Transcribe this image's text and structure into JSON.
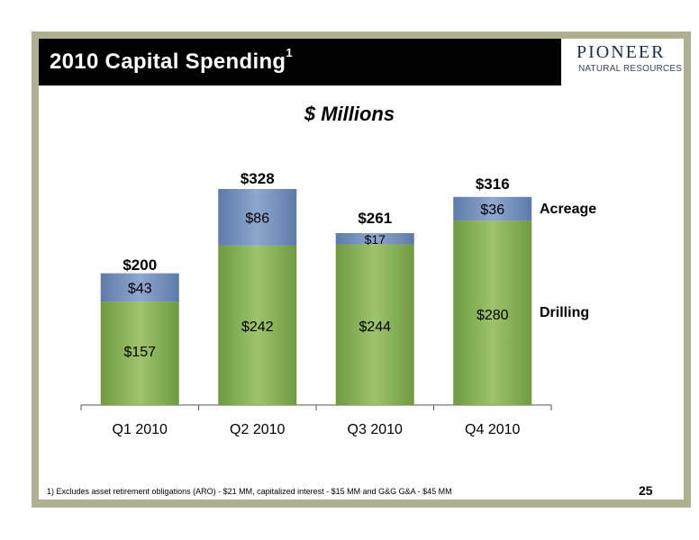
{
  "header": {
    "title": "2010 Capital Spending",
    "title_superscript": "1",
    "logo_main": "PIONEER",
    "logo_sub": "NATURAL RESOURCES"
  },
  "footer": {
    "footnote": "1)   Excludes asset retirement obligations (ARO) - $21 MM, capitalized interest - $15 MM and G&G G&A - $45 MM",
    "page_number": "25"
  },
  "colors": {
    "frame": "#aeb08f",
    "drilling": "#7aa84a",
    "acreage": "#6f8cb8"
  },
  "chart_data": {
    "type": "bar",
    "stacked": true,
    "title": "$ Millions",
    "categories": [
      "Q1 2010",
      "Q2 2010",
      "Q3 2010",
      "Q4 2010"
    ],
    "series": [
      {
        "name": "Drilling",
        "values": [
          157,
          242,
          244,
          280
        ],
        "labels": [
          "$157",
          "$242",
          "$244",
          "$280"
        ]
      },
      {
        "name": "Acreage",
        "values": [
          43,
          86,
          17,
          36
        ],
        "labels": [
          "$43",
          "$86",
          "$17",
          "$36"
        ]
      }
    ],
    "totals": [
      200,
      328,
      261,
      316
    ],
    "total_labels": [
      "$200",
      "$328",
      "$261",
      "$316"
    ],
    "ylim": [
      0,
      328
    ],
    "legend_placement": "right, beside last bar"
  }
}
